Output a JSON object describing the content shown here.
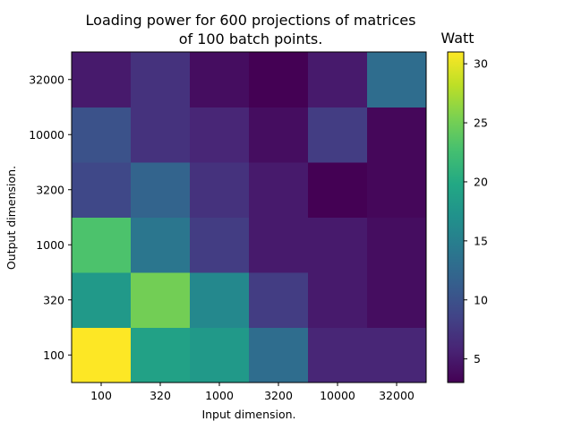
{
  "chart_data": {
    "type": "heatmap",
    "title_line1": "Loading power for 600 projections of matrices",
    "title_line2": "of 100 batch points.",
    "xlabel": "Input dimension.",
    "ylabel": "Output dimension.",
    "x_categories": [
      "100",
      "320",
      "1000",
      "3200",
      "10000",
      "32000"
    ],
    "y_categories": [
      "100",
      "320",
      "1000",
      "3200",
      "10000",
      "32000"
    ],
    "values": [
      [
        31,
        19,
        18,
        13,
        6,
        6
      ],
      [
        18,
        25,
        16,
        8,
        5,
        4
      ],
      [
        23,
        14,
        8,
        5,
        5,
        4
      ],
      [
        9,
        12,
        7,
        5,
        3,
        3.5
      ],
      [
        10,
        7,
        6,
        4,
        8,
        3.5
      ],
      [
        5,
        7,
        4,
        3,
        5,
        13
      ]
    ],
    "colorbar": {
      "label": "Watt",
      "ticks": [
        5,
        10,
        15,
        20,
        25,
        30
      ],
      "vmin": 3,
      "vmax": 31,
      "colormap": "viridis"
    }
  }
}
